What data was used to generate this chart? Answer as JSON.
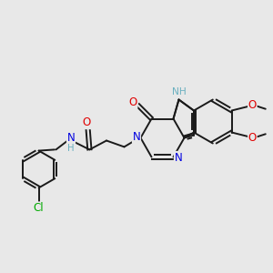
{
  "background_color": "#e8e8e8",
  "bond_color": "#1a1a1a",
  "atom_colors": {
    "O": "#e00000",
    "N": "#0000e0",
    "Cl": "#00aa00",
    "NH": "#6ab0c0",
    "C": "#1a1a1a"
  },
  "lw": 1.4,
  "fs": 8.5,
  "fs_small": 7.2
}
